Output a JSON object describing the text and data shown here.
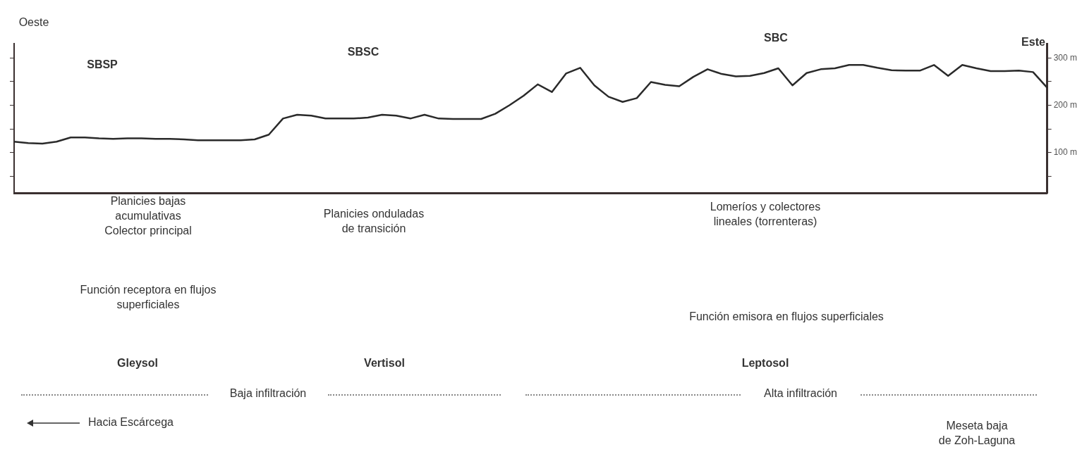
{
  "chart_data": {
    "type": "line",
    "categories": [
      null,
      null,
      null,
      null,
      null,
      null,
      null,
      null,
      null,
      null,
      null,
      null,
      null,
      null,
      null,
      null,
      null,
      null,
      null,
      null,
      null,
      null,
      null,
      null,
      null,
      null,
      null,
      null,
      null,
      null,
      null,
      null,
      null,
      null,
      null,
      null,
      null,
      null,
      null,
      null,
      null,
      null,
      null,
      null,
      null,
      null,
      null,
      null,
      null,
      null,
      null,
      null,
      null,
      null,
      null,
      null,
      null,
      null,
      null,
      null,
      null,
      null,
      null,
      null,
      null,
      null,
      null,
      null,
      null,
      null,
      null,
      null,
      null,
      null
    ],
    "series": [
      {
        "color": "#2a2a2a",
        "values": [
          123,
          120,
          119,
          123,
          132,
          132,
          130,
          129,
          130,
          130,
          129,
          129,
          128,
          126,
          126,
          126,
          126,
          128,
          138,
          172,
          180,
          178,
          172,
          172,
          172,
          174,
          180,
          178,
          172,
          180,
          172,
          171,
          171,
          171,
          182,
          200,
          220,
          244,
          228,
          267,
          279,
          242,
          218,
          207,
          215,
          249,
          243,
          240,
          260,
          276,
          266,
          261,
          262,
          268,
          278,
          242,
          268,
          276,
          278,
          285,
          285,
          279,
          274,
          273,
          273,
          285,
          262,
          285,
          278,
          272,
          272,
          273,
          270,
          237
        ]
      }
    ],
    "ylim": [
      15,
      330
    ],
    "yticks": [
      {
        "value": 50,
        "label": null
      },
      {
        "value": 100,
        "label": "100 m"
      },
      {
        "value": 150,
        "label": null
      },
      {
        "value": 200,
        "label": "200 m"
      },
      {
        "value": 250,
        "label": null
      },
      {
        "value": 300,
        "label": "300 m"
      }
    ],
    "tick_labels": "y",
    "grid": false,
    "legend": false,
    "marker": "none",
    "line_style": "solid",
    "annotations": [
      "Oeste",
      "Este",
      "SBSP",
      "SBSC",
      "SBC",
      "Planicies bajas\nacumulativas\nColector principal",
      "Función receptora en flujos\nsuperficiales",
      "Planicies onduladas\nde transición",
      "Lomeríos y colectores\nlineales (torrenteras)",
      "Función emisora en flujos superficiales",
      "Gleysol",
      "Vertisol",
      "Leptosol",
      "Baja infiltración",
      "Alta infiltración",
      "Hacia Escárcega",
      "Meseta baja\nde Zoh-Laguna"
    ]
  }
}
